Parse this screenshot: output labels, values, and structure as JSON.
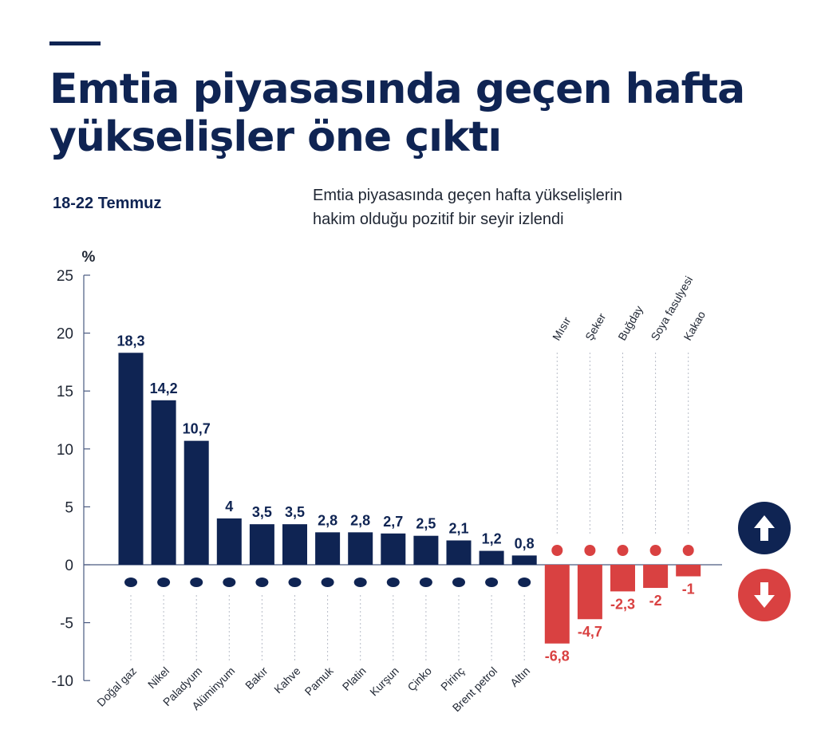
{
  "header": {
    "title_line1": "Emtia piyasasında geçen hafta",
    "title_line2": "yükselişler öne çıktı",
    "date": "18-22 Temmuz",
    "description_line1": "Emtia piyasasında geçen hafta yükselişlerin",
    "description_line2": "hakim olduğu pozitif bir seyir izlendi"
  },
  "colors": {
    "positive": "#0f2453",
    "negative": "#d94141",
    "text": "#1f2633"
  },
  "indicators": {
    "up_icon": "arrow-up-icon",
    "down_icon": "arrow-down-icon"
  },
  "chart_data": {
    "type": "bar",
    "ylabel": "%",
    "ylim": [
      -10,
      25
    ],
    "yticks": [
      25,
      20,
      15,
      10,
      5,
      0,
      -5,
      -10
    ],
    "grid": false,
    "categories": [
      "Doğal gaz",
      "Nikel",
      "Paladyum",
      "Alüminyum",
      "Bakır",
      "Kahve",
      "Pamuk",
      "Platin",
      "Kurşun",
      "Çinko",
      "Pirinç",
      "Brent petrol",
      "Altın",
      "Mısır",
      "Şeker",
      "Buğday",
      "Soya fasulyesi",
      "Kakao"
    ],
    "values": [
      18.3,
      14.2,
      10.7,
      4,
      3.5,
      3.5,
      2.8,
      2.8,
      2.7,
      2.5,
      2.1,
      1.2,
      0.8,
      -6.8,
      -4.7,
      -2.3,
      -2,
      -1
    ],
    "value_labels": [
      "18,3",
      "14,2",
      "10,7",
      "4",
      "3,5",
      "3,5",
      "2,8",
      "2,8",
      "2,7",
      "2,5",
      "2,1",
      "1,2",
      "0,8",
      "-6,8",
      "-4,7",
      "-2,3",
      "-2",
      "-1"
    ],
    "icons": [
      "flame-icon",
      "metal-bar-icon",
      "metal-bar-icon",
      "metal-bar-icon",
      "metal-bar-icon",
      "coffee-bean-icon",
      "cotton-icon",
      "metal-bar-icon",
      "metal-bar-icon",
      "metal-bar-icon",
      "rice-sack-icon",
      "oil-barrel-icon",
      "metal-bar-icon",
      "corn-icon",
      "sugar-icon",
      "wheat-icon",
      "soybean-icon",
      "cocoa-icon"
    ]
  }
}
